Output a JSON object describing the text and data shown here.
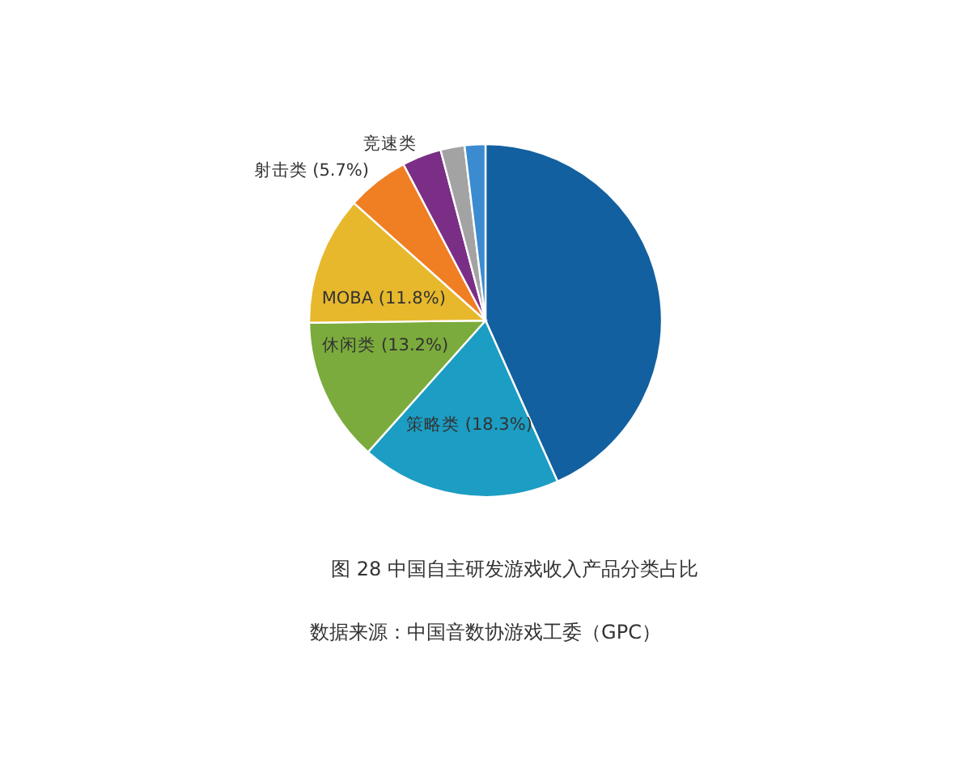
{
  "chart_data": {
    "type": "pie",
    "title": "图 28 中国自主研发游戏收入产品分类占比",
    "annotations": [
      "数据来源：中国音数协游戏工委（GPC）"
    ],
    "categories": [
      null,
      "策略类",
      "休闲类",
      "MOBA",
      "射击类",
      "竞速类",
      null,
      null
    ],
    "values": [
      43.3,
      18.3,
      13.2,
      11.8,
      5.7,
      3.6,
      2.2,
      1.9
    ],
    "value_labels": [
      null,
      "(18.3%)",
      "(13.2%)",
      "(11.8%)",
      "(5.7%)",
      null,
      null,
      null
    ],
    "colors": [
      "#12609f",
      "#1c9dc3",
      "#7bab3c",
      "#e7b82c",
      "#f07e22",
      "#7a2e86",
      "#a3a3a3",
      "#3b8bd0"
    ]
  }
}
